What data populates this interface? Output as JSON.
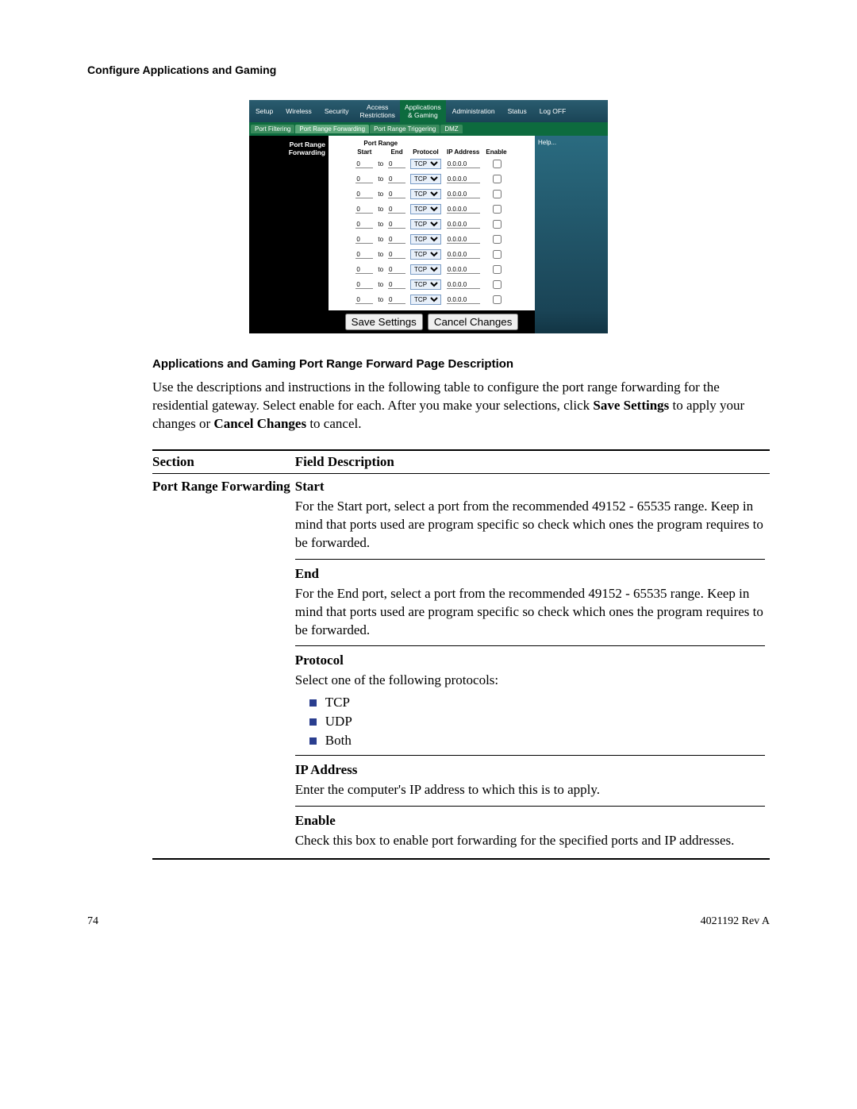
{
  "page": {
    "title": "Configure Applications and Gaming",
    "page_number": "74",
    "doc_rev": "4021192 Rev A"
  },
  "router": {
    "topnav": [
      "Setup",
      "Wireless",
      "Security",
      "Access\nRestrictions",
      "Applications\n& Gaming",
      "Administration",
      "Status",
      "Log OFF"
    ],
    "topnav_active_index": 4,
    "subnav": [
      "Port Filtering",
      "Port Range Forwarding",
      "Port Range Triggering",
      "DMZ"
    ],
    "subnav_active_index": 1,
    "left_label": "Port Range Forwarding",
    "help_label": "Help...",
    "table": {
      "group_header": "Port Range",
      "headers": [
        "Start",
        "",
        "End",
        "Protocol",
        "IP Address",
        "Enable"
      ],
      "num_rows": 10,
      "default_start": "0",
      "to_label": "to",
      "default_end": "0",
      "protocol_default": "TCP",
      "protocol_options": [
        "TCP",
        "UDP",
        "Both"
      ],
      "default_ip": "0.0.0.0",
      "default_enable": false
    },
    "buttons": {
      "save": "Save Settings",
      "cancel": "Cancel Changes"
    }
  },
  "section": {
    "subheading": "Applications and Gaming Port Range Forward Page Description",
    "intro_pre": "Use the descriptions and instructions in the following table to configure the port range forwarding for the residential gateway. Select enable for each. After you make your selections, click ",
    "intro_b1": "Save Settings",
    "intro_mid": " to apply your changes or ",
    "intro_b2": "Cancel Changes",
    "intro_post": " to cancel."
  },
  "desc_table": {
    "header_section": "Section",
    "header_field": "Field Description",
    "section_label": "Port Range Forwarding",
    "fields": [
      {
        "name": "Start",
        "desc": "For the Start port, select a port from the recommended 49152 - 65535 range. Keep in mind that ports used are program specific so check which ones the program requires to be forwarded."
      },
      {
        "name": "End",
        "desc": "For the End port, select a port from the recommended 49152 - 65535 range. Keep in mind that ports used are program specific so check which ones the program requires to be forwarded."
      },
      {
        "name": "Protocol",
        "desc": "Select one of the following protocols:",
        "list": [
          "TCP",
          "UDP",
          "Both"
        ]
      },
      {
        "name": "IP Address",
        "desc": "Enter the computer's IP address to which this is to apply."
      },
      {
        "name": "Enable",
        "desc": "Check this box to enable port forwarding for the specified ports and IP addresses."
      }
    ]
  }
}
